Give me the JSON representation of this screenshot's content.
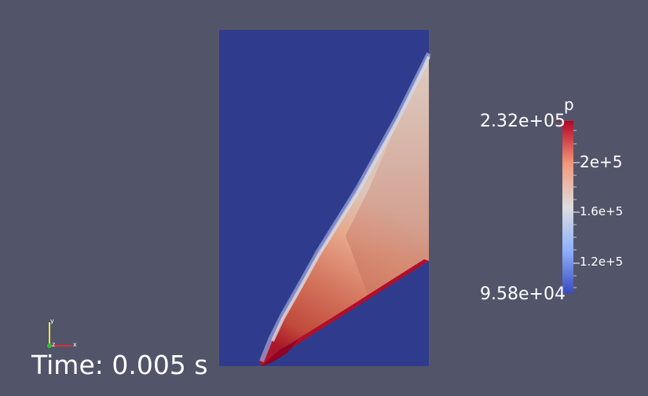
{
  "viewer": {
    "background": "#525569",
    "time_label": "Time: 0.005 s"
  },
  "field": {
    "low_region_color": "#2f3c8e",
    "wedge_colors": [
      "#3a4cc0",
      "#dcdde1",
      "#e9b7a1",
      "#c65b4b",
      "#b40426"
    ]
  },
  "colorbar": {
    "title": "p",
    "max_label": "2.32e+05",
    "min_label": "9.58e+04",
    "ticks": [
      "2e+5",
      "1.6e+5",
      "1.2e+5"
    ],
    "max_color": "#b40426",
    "mid_color": "#dddddd",
    "min_color": "#3b4cc0"
  },
  "axes_triad": {
    "x_label": "x",
    "y_label": "y",
    "z_label": "z",
    "x_color": "#e03030",
    "y_color": "#e8e840",
    "z_color": "#30c030"
  }
}
